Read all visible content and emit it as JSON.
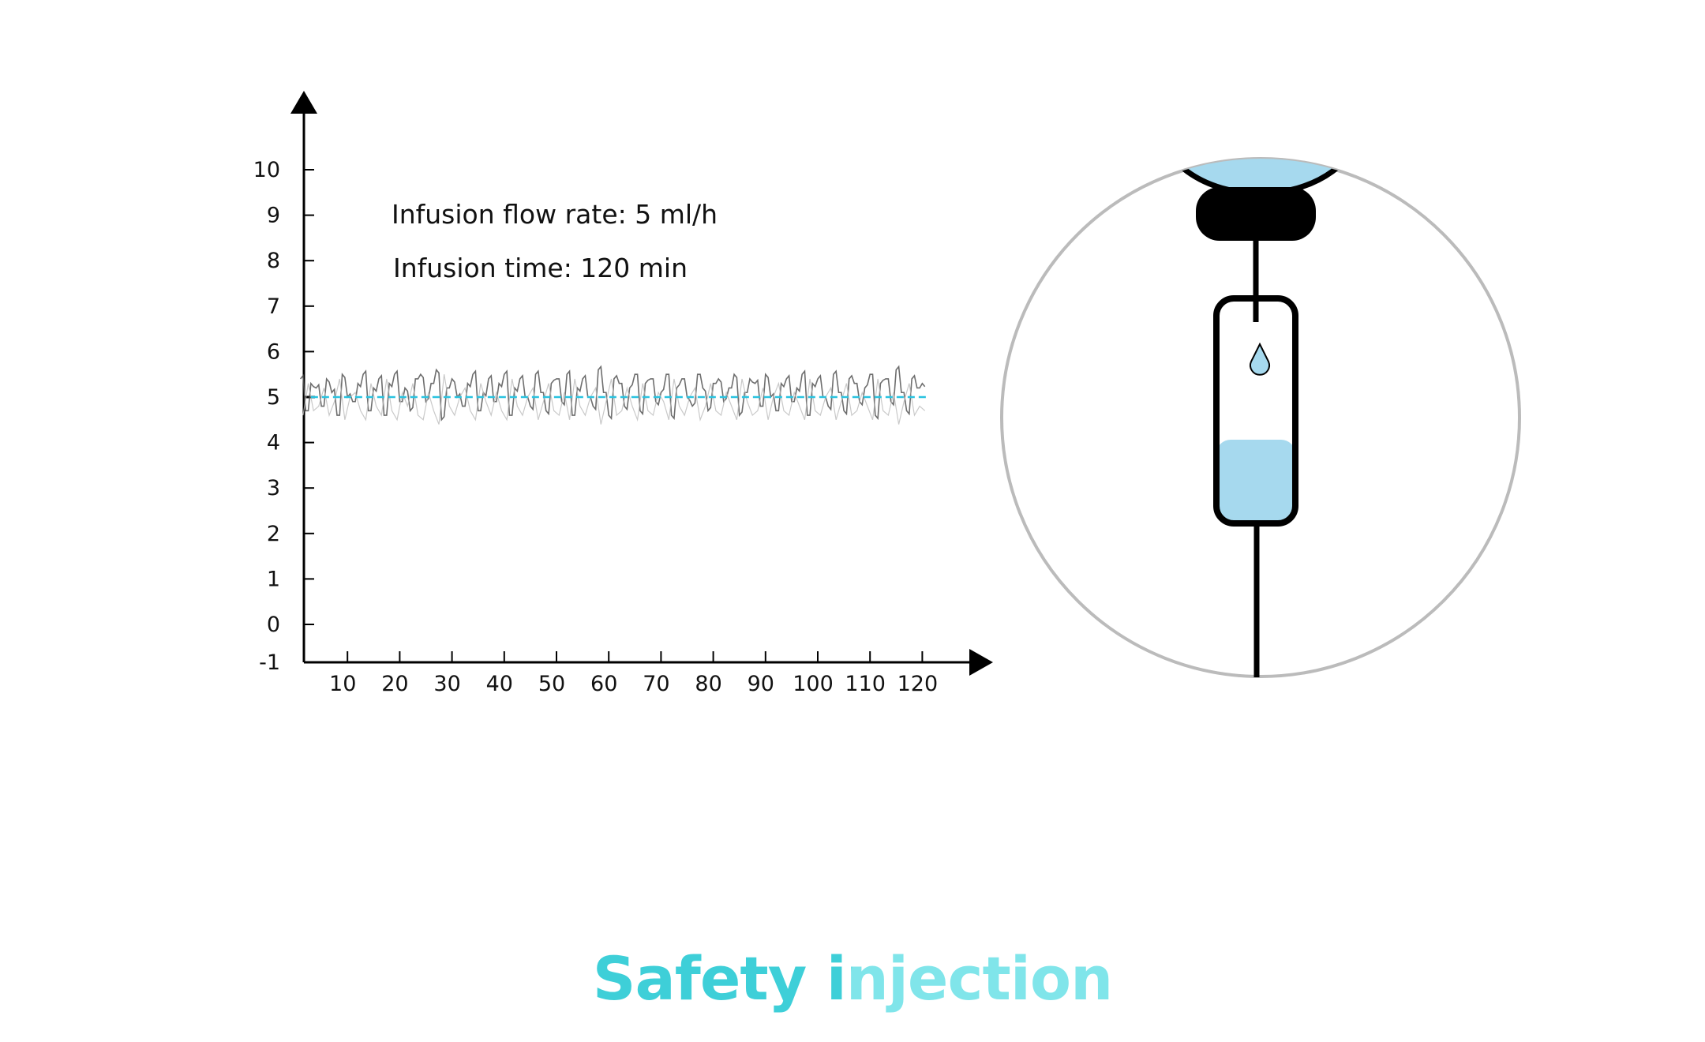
{
  "chart_data": {
    "type": "line",
    "title": "",
    "xlabel": "",
    "ylabel": "",
    "xlim": [
      0,
      130
    ],
    "ylim": [
      -1,
      11
    ],
    "x_ticks": [
      10,
      20,
      30,
      40,
      50,
      60,
      70,
      80,
      90,
      100,
      110,
      120
    ],
    "y_ticks": [
      -1,
      0,
      1,
      2,
      3,
      4,
      5,
      6,
      7,
      8,
      9,
      10
    ],
    "grid": false,
    "annotations": [
      "Infusion flow rate: 5 ml/h",
      "Infusion time: 120 min"
    ],
    "series": [
      {
        "style": "noisy",
        "color": "#555555",
        "x_start": 1,
        "x_step": 1,
        "values": [
          5.4,
          4.7,
          5.3,
          5.2,
          4.8,
          5.4,
          5.1,
          4.6,
          5.5,
          5.0,
          4.9,
          5.3,
          5.5,
          4.7,
          5.2,
          5.4,
          4.6,
          5.3,
          5.5,
          4.9,
          5.2,
          4.7,
          5.4,
          5.5,
          4.9,
          5.3,
          5.6,
          4.5,
          5.2,
          5.4,
          5.0,
          4.8,
          5.3,
          5.5,
          4.7,
          5.1,
          5.4,
          4.9,
          5.3,
          5.5,
          4.6,
          5.2,
          5.4,
          5.0,
          4.8,
          5.5,
          5.1,
          4.7,
          5.3,
          5.4,
          4.9,
          5.5,
          4.6,
          5.2,
          5.4,
          5.0,
          4.8,
          5.6,
          5.1,
          4.6,
          5.4,
          5.3,
          4.8,
          5.2,
          5.5,
          4.7,
          5.3,
          5.4,
          4.9,
          5.1,
          5.5,
          4.6,
          5.2,
          5.4,
          5.0,
          4.8,
          5.5,
          5.2,
          4.7,
          5.3,
          5.4,
          4.9,
          5.2,
          5.5,
          4.6,
          5.1,
          5.4,
          5.3,
          4.8,
          5.5,
          5.0,
          4.7,
          5.3,
          5.4,
          4.9,
          5.2,
          5.5,
          4.6,
          5.3,
          5.4,
          5.0,
          4.8,
          5.5,
          5.1,
          4.7,
          5.4,
          5.3,
          4.9,
          5.2,
          5.5,
          4.6,
          5.3,
          5.4,
          4.9,
          5.6,
          5.1,
          4.7,
          5.4,
          5.2,
          5.3
        ]
      },
      {
        "style": "dashed",
        "color": "#29c3e0",
        "x": [
          3,
          121
        ],
        "values": [
          5,
          5
        ]
      }
    ]
  },
  "illustration": {
    "fluid_color": "#a6d9ee",
    "drip_chamber_fill_level": 0.38,
    "circle_color": "#bbbbbb"
  },
  "title": {
    "text": "Safety injection",
    "colors": [
      "#3ecfd8",
      "#80e5ea"
    ]
  }
}
